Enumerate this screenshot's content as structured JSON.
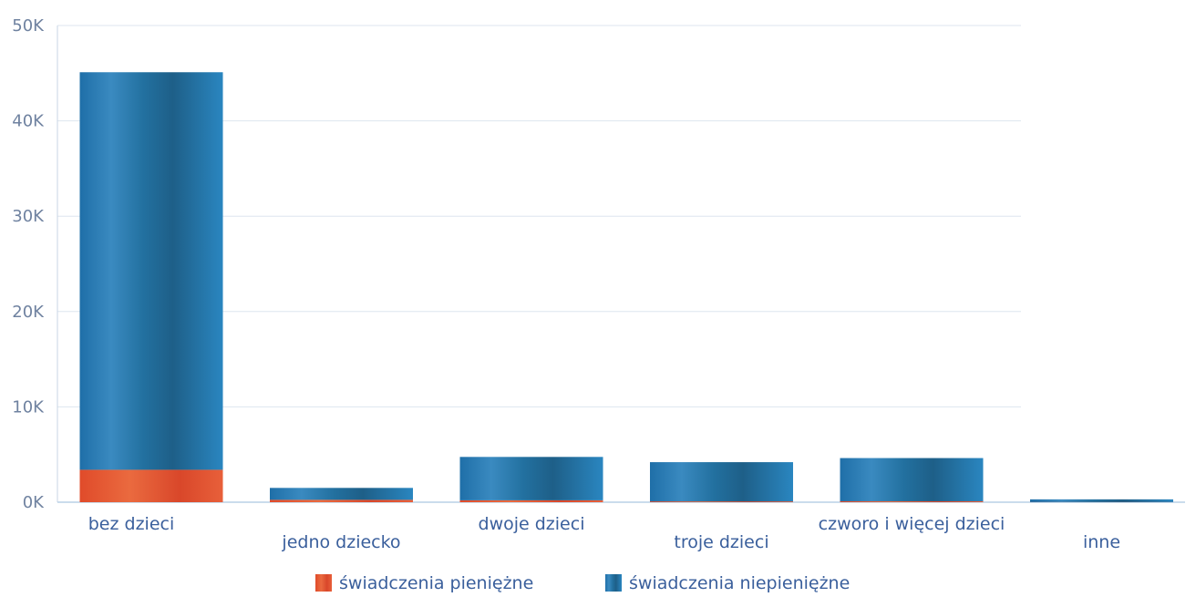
{
  "chart_data": {
    "type": "bar",
    "stacked": true,
    "categories": [
      "bez dzieci",
      "jedno dziecko",
      "dwoje dzieci",
      "troje dzieci",
      "czworo i więcej dzieci",
      "inne"
    ],
    "series": [
      {
        "name": "świadczenia pieniężne",
        "values": [
          3400,
          250,
          200,
          80,
          100,
          10
        ],
        "color": "#e0512d"
      },
      {
        "name": "świadczenia niepieniężne",
        "values": [
          41700,
          1250,
          4550,
          4120,
          4530,
          290
        ],
        "color": "#2178b4"
      }
    ],
    "ylim": [
      0,
      50000
    ],
    "yticks": [
      0,
      10000,
      20000,
      30000,
      40000,
      50000
    ],
    "ytick_labels": [
      "0K",
      "10K",
      "20K",
      "30K",
      "40K",
      "50K"
    ],
    "grid": true,
    "legend": "bottom-center"
  }
}
